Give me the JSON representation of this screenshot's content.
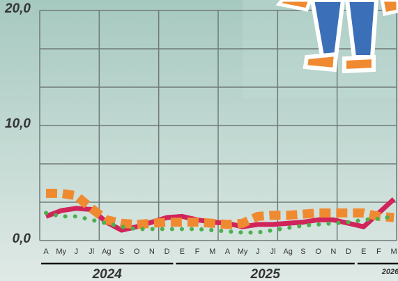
{
  "chart_data": {
    "type": "line",
    "groups": [
      {
        "name": "2024",
        "categories": [
          "A",
          "My",
          "J",
          "Jl",
          "Ag",
          "S",
          "O",
          "N",
          "D"
        ]
      },
      {
        "name": "2025",
        "categories": [
          "E",
          "F",
          "M",
          "A",
          "My",
          "J",
          "Jl",
          "Ag",
          "S",
          "O",
          "N",
          "D"
        ]
      },
      {
        "name": "2026",
        "categories": [
          "E",
          "F",
          "M"
        ]
      }
    ],
    "series": [
      {
        "color": "#d0245a",
        "style": "solid",
        "values": [
          2.1,
          2.6,
          2.8,
          2.7,
          1.6,
          0.9,
          1.2,
          1.6,
          2.0,
          2.1,
          1.8,
          1.6,
          1.5,
          1.2,
          1.4,
          1.4,
          1.5,
          1.6,
          1.8,
          1.8,
          1.5,
          1.2,
          2.4,
          3.6
        ]
      },
      {
        "color": "#f08a30",
        "style": "dashed",
        "values": [
          4.1,
          4.1,
          3.9,
          2.8,
          1.8,
          1.5,
          1.4,
          1.5,
          1.6,
          1.6,
          1.6,
          1.5,
          1.4,
          1.5,
          2.1,
          2.2,
          2.2,
          2.3,
          2.4,
          2.4,
          2.4,
          2.4,
          2.1,
          2.0
        ]
      },
      {
        "color": "#4caf50",
        "style": "dotted",
        "values": [
          2.4,
          2.1,
          2.1,
          1.8,
          1.5,
          1.2,
          1.0,
          1.0,
          1.0,
          1.0,
          1.0,
          0.9,
          0.8,
          0.7,
          0.7,
          0.9,
          1.1,
          1.3,
          1.4,
          1.5,
          1.6,
          1.8,
          1.9,
          2.1
        ]
      }
    ],
    "ylim": [
      0,
      20
    ],
    "yticks": [
      {
        "value": 0,
        "label": "0,0"
      },
      {
        "value": 10,
        "label": "10,0"
      },
      {
        "value": 20,
        "label": "20,0"
      }
    ],
    "minor_yticks": [
      3.33,
      6.67,
      13.33,
      16.67
    ],
    "grid": true
  }
}
